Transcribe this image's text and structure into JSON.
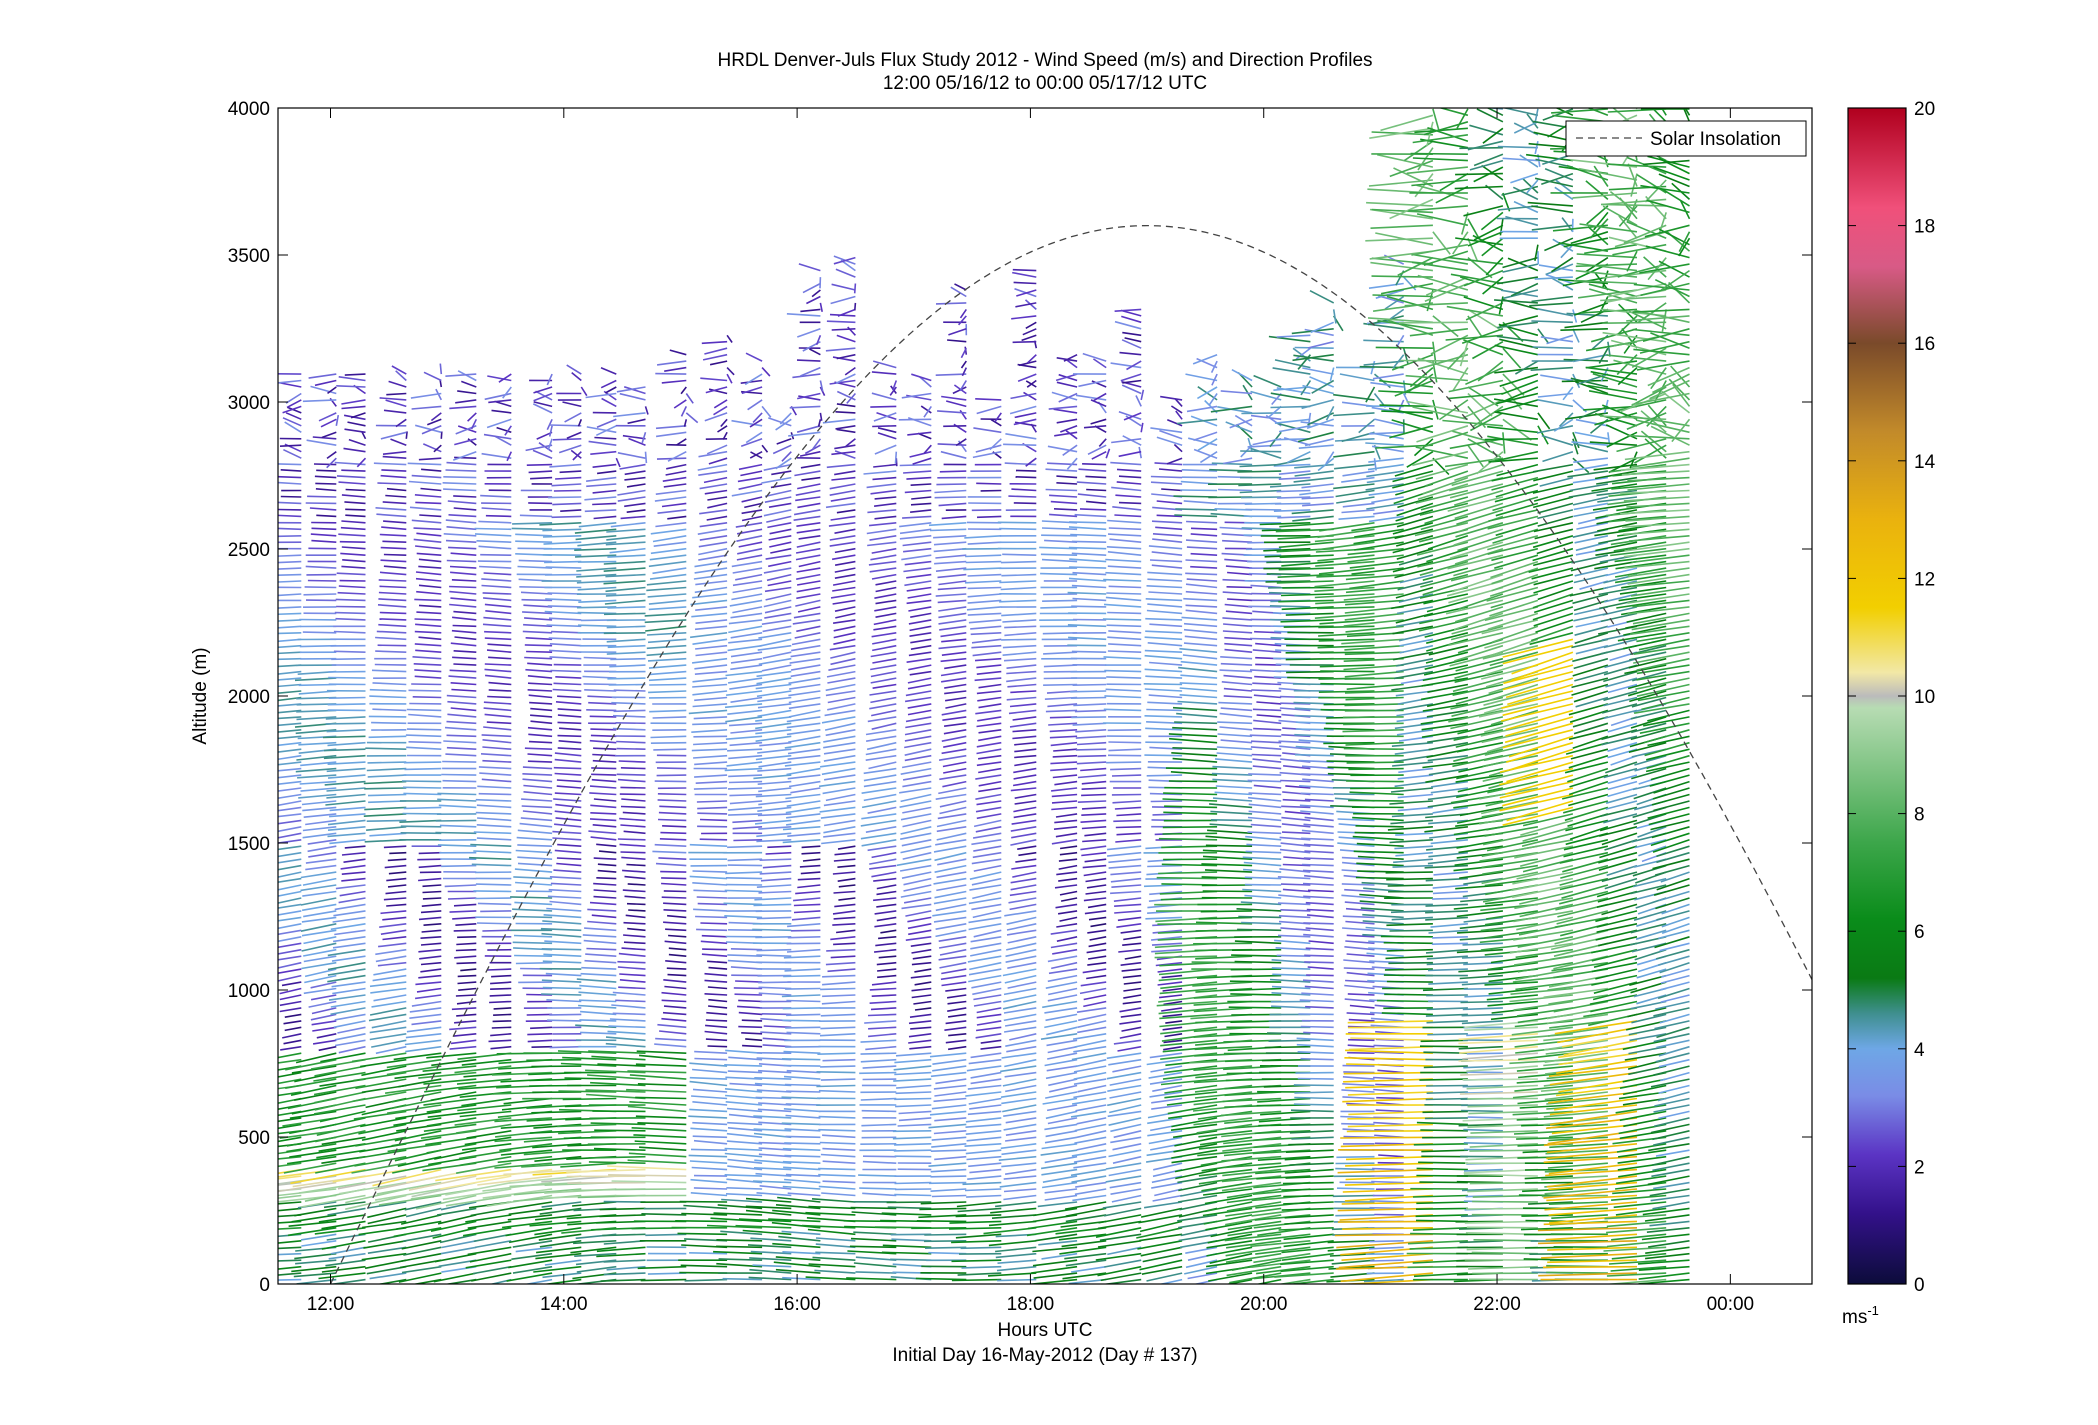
{
  "chart_data": {
    "type": "wind-profile",
    "title": "HRDL Denver-Juls Flux Study 2012 - Wind Speed (m/s) and Direction Profiles",
    "subtitle": "12:00 05/16/12 to 00:00 05/17/12  UTC",
    "xlabel": "Hours UTC",
    "xlabel2": "Initial Day 16-May-2012 (Day # 137)",
    "ylabel": "Altitude (m)",
    "x_ticks": [
      "12:00",
      "14:00",
      "16:00",
      "18:00",
      "20:00",
      "22:00",
      "00:00"
    ],
    "x_tick_hours": [
      12,
      14,
      16,
      18,
      20,
      22,
      24
    ],
    "xlim": [
      11.55,
      24.7
    ],
    "y_ticks": [
      0,
      500,
      1000,
      1500,
      2000,
      2500,
      3000,
      3500,
      4000
    ],
    "ylim": [
      0,
      4000
    ],
    "legend": {
      "label": "Solar Insolation",
      "position": "top-right"
    },
    "colorbar": {
      "ticks": [
        0,
        2,
        4,
        6,
        8,
        10,
        12,
        14,
        16,
        18,
        20
      ],
      "range": [
        0,
        20
      ],
      "unit_label": "ms",
      "unit_exponent": "-1",
      "colors": [
        {
          "v": 0,
          "c": "#0c0c3a"
        },
        {
          "v": 1.2,
          "c": "#33118a"
        },
        {
          "v": 2.2,
          "c": "#5b34c4"
        },
        {
          "v": 3.2,
          "c": "#7a8ce6"
        },
        {
          "v": 4,
          "c": "#6ea7e6"
        },
        {
          "v": 4.6,
          "c": "#3f8f8f"
        },
        {
          "v": 5.2,
          "c": "#0a7a14"
        },
        {
          "v": 6.2,
          "c": "#0a8c1a"
        },
        {
          "v": 7.5,
          "c": "#3ca64a"
        },
        {
          "v": 9.8,
          "c": "#b7dcb3"
        },
        {
          "v": 10,
          "c": "#bbbbbb"
        },
        {
          "v": 10.4,
          "c": "#f2e8a6"
        },
        {
          "v": 11.5,
          "c": "#f2cf00"
        },
        {
          "v": 13,
          "c": "#eab20e"
        },
        {
          "v": 14.5,
          "c": "#c28a2a"
        },
        {
          "v": 16,
          "c": "#7a4a2a"
        },
        {
          "v": 17.3,
          "c": "#d85a86"
        },
        {
          "v": 18.3,
          "c": "#f0507a"
        },
        {
          "v": 20,
          "c": "#b0001e"
        }
      ]
    },
    "solar_insolation_peak_hour": 19.0,
    "solar_insolation_peak_altitude": 3600,
    "profile_hours": [
      11.75,
      12.05,
      12.3,
      12.65,
      12.95,
      13.25,
      13.55,
      13.9,
      14.15,
      14.45,
      14.7,
      15.05,
      15.4,
      15.7,
      15.95,
      16.2,
      16.5,
      16.85,
      17.15,
      17.45,
      17.75,
      18.05,
      18.4,
      18.65,
      18.95,
      19.3,
      19.6,
      19.9,
      20.15,
      20.4,
      20.6,
      20.95,
      21.2,
      21.45,
      21.75,
      22.05,
      22.35,
      22.65,
      22.95,
      23.2,
      23.45,
      23.65
    ]
  }
}
